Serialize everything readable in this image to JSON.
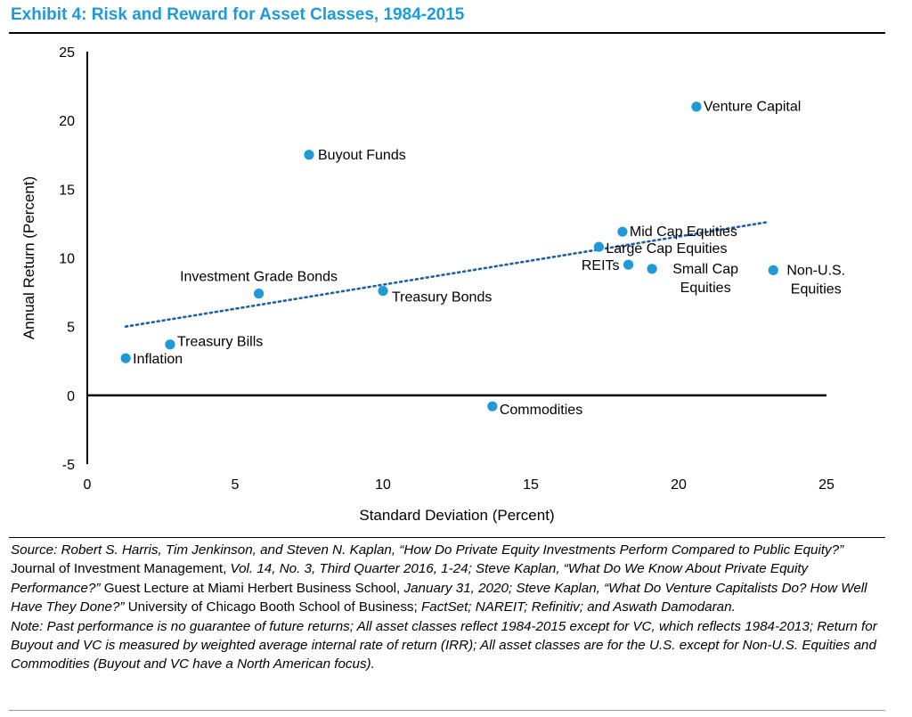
{
  "header": {
    "title": "Exhibit 4: Risk and Reward for Asset Classes, 1984-2015"
  },
  "chart_data": {
    "type": "scatter",
    "title": "",
    "xlabel": "Standard Deviation (Percent)",
    "ylabel": "Annual Return (Percent)",
    "xlim": [
      0,
      25
    ],
    "ylim": [
      -5,
      25
    ],
    "xticks": [
      "0",
      "5",
      "10",
      "15",
      "20",
      "25"
    ],
    "yticks": [
      "-5",
      "0",
      "5",
      "10",
      "15",
      "20",
      "25"
    ],
    "grid": false,
    "point_color": "#1f9ad6",
    "trend_color": "#1f5fa6",
    "points": [
      {
        "label": "Inflation",
        "x": 1.3,
        "y": 2.7
      },
      {
        "label": "Treasury Bills",
        "x": 2.8,
        "y": 3.7
      },
      {
        "label": "Investment Grade Bonds",
        "x": 5.8,
        "y": 7.4
      },
      {
        "label": "Buyout Funds",
        "x": 7.5,
        "y": 17.5
      },
      {
        "label": "Treasury Bonds",
        "x": 10.0,
        "y": 7.6
      },
      {
        "label": "Commodities",
        "x": 13.7,
        "y": -0.8
      },
      {
        "label": "Large Cap Equities",
        "x": 17.3,
        "y": 10.8
      },
      {
        "label": "Mid Cap Equities",
        "x": 18.1,
        "y": 11.9
      },
      {
        "label": "REITs",
        "x": 18.3,
        "y": 9.5
      },
      {
        "label": "Small Cap Equities",
        "label_lines": [
          "Small Cap",
          "Equities"
        ],
        "x": 19.1,
        "y": 9.2
      },
      {
        "label": "Venture Capital",
        "x": 20.6,
        "y": 21.0
      },
      {
        "label": "Non-U.S. Equities",
        "label_lines": [
          "Non-U.S.",
          "Equities"
        ],
        "x": 23.2,
        "y": 9.1
      }
    ],
    "trendline": {
      "x": [
        1.3,
        23.0
      ],
      "y": [
        5.0,
        12.6
      ],
      "style": "dotted"
    }
  },
  "source": {
    "label": "Source:",
    "authors1": "Robert S. Harris, Tim Jenkinson, and Steven N. Kaplan, “How Do Private Equity Investments Perform Compared to Public Equity?”",
    "journal": "Journal of Investment Management,",
    "vol": "Vol. 14, No. 3, Third Quarter 2016, 1-24; Steve Kaplan, “What Do We Know About Private Equity Performance?”",
    "lecture": "Guest Lecture at Miami Herbert Business School,",
    "date": "January 31, 2020; Steve Kaplan, “What Do Venture Capitalists Do? How Well Have They Done?”",
    "univ": "University of Chicago Booth School of Business;",
    "tail": "FactSet; NAREIT; Refinitiv; and Aswath Damodaran."
  },
  "note": "Note: Past performance is no guarantee of future returns; All asset classes reflect 1984-2015 except for VC, which reflects 1984-2013; Return for Buyout and VC is measured by weighted average internal rate of return (IRR); All asset classes are for the U.S. except for Non-U.S. Equities and Commodities (Buyout and VC have a North American focus)."
}
